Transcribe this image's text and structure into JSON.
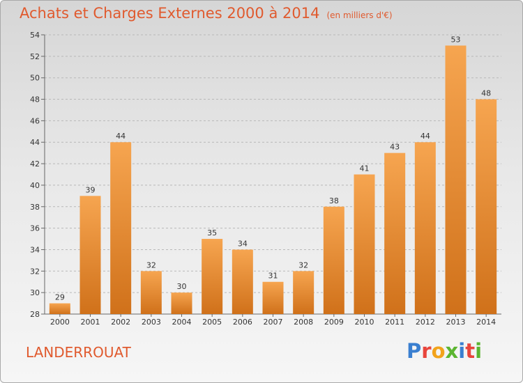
{
  "header": {
    "title": "Achats et Charges Externes 2000 à 2014",
    "unit": "(en milliers d'€)"
  },
  "footer": {
    "town": "LANDERROUAT",
    "logo": [
      {
        "ch": "P",
        "color": "#3a7fd0"
      },
      {
        "ch": "r",
        "color": "#e8453c"
      },
      {
        "ch": "o",
        "color": "#f2a31b"
      },
      {
        "ch": "x",
        "color": "#5bb531"
      },
      {
        "ch": "i",
        "color": "#3a7fd0"
      },
      {
        "ch": "t",
        "color": "#e8453c"
      },
      {
        "ch": "i",
        "color": "#5bb531"
      }
    ]
  },
  "colors": {
    "accent": "#e05a2e",
    "bar_top": "#f6a550",
    "bar_bottom": "#d0711a"
  },
  "chart_data": {
    "type": "bar",
    "categories": [
      "2000",
      "2001",
      "2002",
      "2003",
      "2004",
      "2005",
      "2006",
      "2007",
      "2008",
      "2009",
      "2010",
      "2011",
      "2012",
      "2013",
      "2014"
    ],
    "values": [
      29,
      39,
      44,
      32,
      30,
      35,
      34,
      31,
      32,
      38,
      41,
      43,
      44,
      53,
      48
    ],
    "ylim": [
      28,
      54
    ],
    "yticks": [
      28,
      30,
      32,
      34,
      36,
      38,
      40,
      42,
      44,
      46,
      48,
      50,
      52,
      54
    ],
    "grid": "horizontal dashed",
    "title": "Achats et Charges Externes 2000 à 2014",
    "subtitle": "(en milliers d'€)"
  }
}
